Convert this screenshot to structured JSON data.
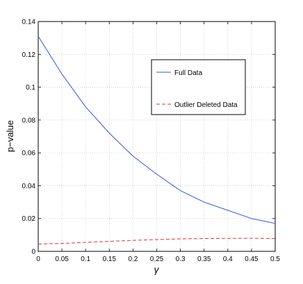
{
  "chart_data": {
    "type": "line",
    "title": "",
    "xlabel": "γ",
    "ylabel": "p−value",
    "xlim": [
      0,
      0.5
    ],
    "ylim": [
      0,
      0.14
    ],
    "x_ticks": [
      "0",
      "0.05",
      "0.1",
      "0.15",
      "0.2",
      "0.25",
      "0.3",
      "0.35",
      "0.4",
      "0.45",
      "0.5"
    ],
    "y_ticks": [
      "0",
      "0.02",
      "0.04",
      "0.06",
      "0.08",
      "0.1",
      "0.12",
      "0.14"
    ],
    "grid": true,
    "legend_position": "upper-right",
    "x": [
      0,
      0.05,
      0.1,
      0.15,
      0.2,
      0.25,
      0.3,
      0.35,
      0.4,
      0.45,
      0.5
    ],
    "series": [
      {
        "name": "Full Data",
        "color": "#3355dd",
        "style": "solid",
        "values": [
          0.131,
          0.108,
          0.088,
          0.072,
          0.058,
          0.047,
          0.037,
          0.03,
          0.025,
          0.02,
          0.017
        ]
      },
      {
        "name": "Outlier Deleted Data",
        "color": "#e03030",
        "style": "dashed",
        "values": [
          0.0045,
          0.0048,
          0.0055,
          0.0061,
          0.0067,
          0.0072,
          0.0076,
          0.0078,
          0.0079,
          0.008,
          0.0078
        ]
      }
    ]
  }
}
